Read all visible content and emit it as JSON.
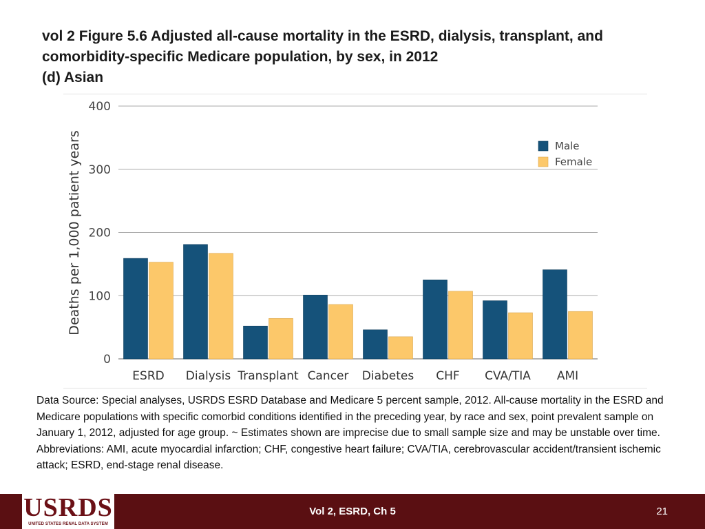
{
  "title": {
    "line1": "vol 2 Figure 5.6 Adjusted all-cause mortality in the ESRD, dialysis, transplant, and",
    "line2": "comorbidity-specific Medicare population, by sex, in 2012",
    "line3": "(d) Asian"
  },
  "chart_data": {
    "type": "bar",
    "title": "",
    "xlabel": "",
    "ylabel": "Deaths per 1,000 patient years",
    "ylim": [
      0,
      400
    ],
    "yticks": [
      0,
      100,
      200,
      300,
      400
    ],
    "grid": true,
    "legend_position": "top-right",
    "categories": [
      "ESRD",
      "Dialysis",
      "Transplant",
      "Cancer",
      "Diabetes",
      "CHF",
      "CVA/TIA",
      "AMI"
    ],
    "series": [
      {
        "name": "Male",
        "color": "#15527a",
        "values": [
          159,
          181,
          52,
          101,
          46,
          125,
          92,
          141
        ]
      },
      {
        "name": "Female",
        "color": "#fcc86a",
        "values": [
          153,
          167,
          64,
          86,
          35,
          107,
          73,
          75
        ]
      }
    ]
  },
  "source_note": "Data Source: Special analyses, USRDS ESRD Database and Medicare 5 percent sample, 2012. All-cause mortality in the ESRD and Medicare populations with specific comorbid conditions identified in the preceding year, by race and sex, point prevalent sample on January 1, 2012, adjusted for age group. ~ Estimates shown are imprecise due to small sample size and may be unstable over time. Abbreviations: AMI, acute myocardial infarction; CHF, congestive heart failure; CVA/TIA, cerebrovascular accident/transient ischemic attack; ESRD, end-stage renal disease.",
  "footer": {
    "logo_text": "USRDS",
    "logo_subtext": "UNITED STATES RENAL DATA SYSTEM",
    "label": "Vol 2, ESRD, Ch 5",
    "page_number": "21"
  },
  "colors": {
    "male": "#15527a",
    "female": "#fcc86a",
    "footer": "#5a0f12"
  }
}
